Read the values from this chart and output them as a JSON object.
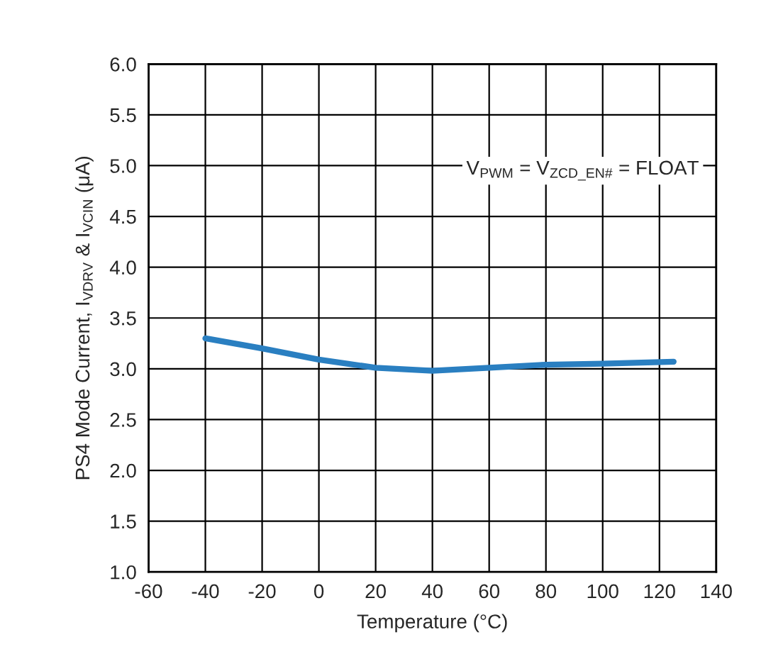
{
  "chart_data": {
    "type": "line",
    "xlabel": "Temperature (°C)",
    "ylabel": "PS4 Mode Current, I$_{VDRV}$ & I$_{VCIN}$ (μA)",
    "annotations": [
      "V$_{PWM}$ = V$_{ZCD_EN#}$ = FLOAT"
    ],
    "x": [
      -40,
      -20,
      0,
      20,
      40,
      60,
      80,
      100,
      125
    ],
    "series": [
      {
        "color": "#2a7fc1",
        "values": [
          3.3,
          3.2,
          3.09,
          3.01,
          2.98,
          3.01,
          3.04,
          3.05,
          3.07
        ]
      }
    ],
    "xlim": [
      -60,
      140
    ],
    "xticks": [
      -60,
      -40,
      -20,
      0,
      20,
      40,
      60,
      80,
      100,
      120,
      140
    ],
    "ylim": [
      1.0,
      6.0
    ],
    "yticks": [
      {
        "value": 1.0,
        "label": "1.0"
      },
      {
        "value": 1.5,
        "label": "1.5"
      },
      {
        "value": 2.0,
        "label": "2.0"
      },
      {
        "value": 2.5,
        "label": "2.5"
      },
      {
        "value": 3.0,
        "label": "3.0"
      },
      {
        "value": 3.5,
        "label": "3.5"
      },
      {
        "value": 4.0,
        "label": "4.0"
      },
      {
        "value": 4.5,
        "label": "4.5"
      },
      {
        "value": 5.0,
        "label": "5.0"
      },
      {
        "value": 5.5,
        "label": "5.5"
      },
      {
        "value": 6.0,
        "label": "6.0"
      }
    ],
    "grid": true,
    "marker": "none",
    "line_style": "solid"
  }
}
